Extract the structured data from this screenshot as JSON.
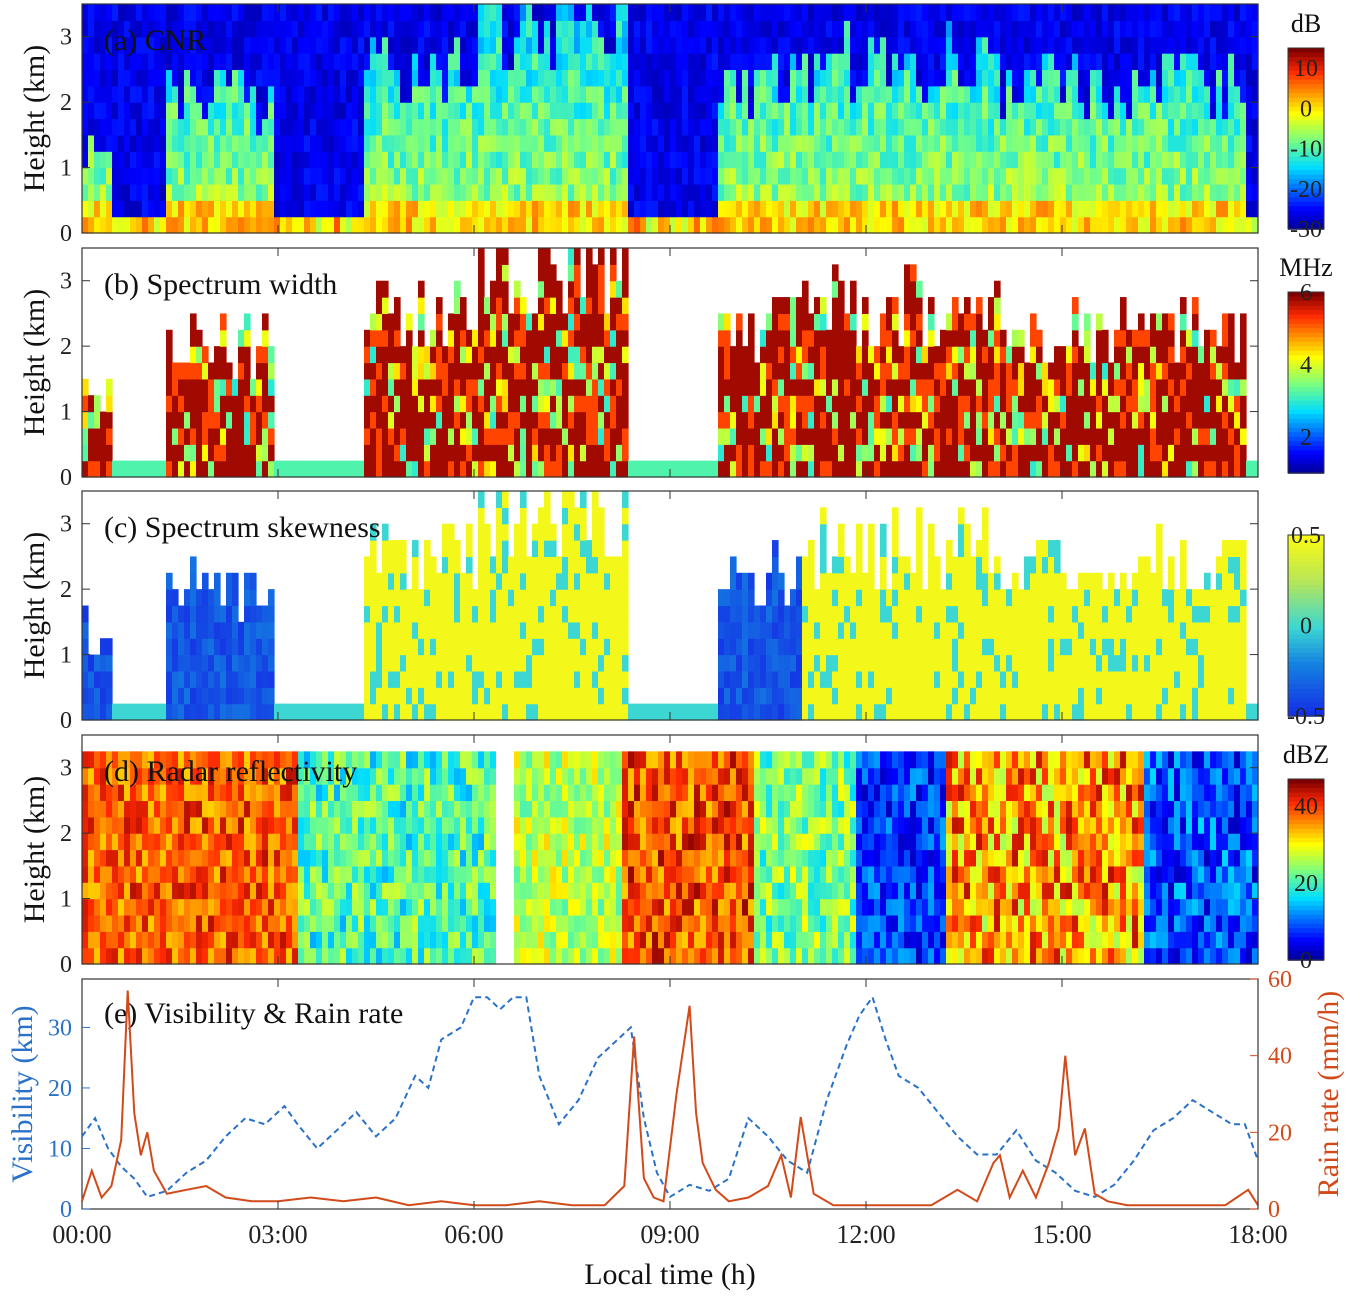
{
  "chart_data": [
    {
      "type": "heatmap",
      "title": "(a) CNR",
      "ylabel": "Height (km)",
      "ylim": [
        0,
        3.5
      ],
      "yticks": [
        "0",
        "1",
        "2",
        "3"
      ],
      "colorbar": {
        "unit": "dB",
        "range": [
          -30,
          15
        ],
        "ticks": [
          "10",
          "0",
          "-10",
          "-20",
          "-30"
        ],
        "colormap": "jet"
      }
    },
    {
      "type": "heatmap",
      "title": "(b) Spectrum width",
      "ylabel": "Height (km)",
      "ylim": [
        0,
        3.5
      ],
      "yticks": [
        "0",
        "1",
        "2",
        "3"
      ],
      "colorbar": {
        "unit": "MHz",
        "range": [
          1,
          6
        ],
        "ticks": [
          "6",
          "4",
          "2"
        ],
        "colormap": "jet"
      }
    },
    {
      "type": "heatmap",
      "title": "(c) Spectrum skewness",
      "ylabel": "Height (km)",
      "ylim": [
        0,
        3.5
      ],
      "yticks": [
        "0",
        "1",
        "2",
        "3"
      ],
      "colorbar": {
        "unit": "",
        "range": [
          -0.5,
          0.5
        ],
        "ticks": [
          "0.5",
          "0",
          "-0.5"
        ],
        "colormap": "parula"
      }
    },
    {
      "type": "heatmap",
      "title": "(d) Radar reflectivity",
      "ylabel": "Height (km)",
      "ylim": [
        0,
        3.5
      ],
      "yticks": [
        "0",
        "1",
        "2",
        "3"
      ],
      "colorbar": {
        "unit": "dBZ",
        "range": [
          0,
          47
        ],
        "ticks": [
          "40",
          "20",
          "0"
        ],
        "colormap": "jet"
      }
    },
    {
      "type": "line",
      "title": "(e) Visibility & Rain rate",
      "xlabel": "Local time (h)",
      "x_ticks": [
        "00:00",
        "03:00",
        "06:00",
        "09:00",
        "12:00",
        "15:00",
        "18:00"
      ],
      "xlim": [
        0,
        18
      ],
      "y_left": {
        "label": "Visibility (km)",
        "ticks": [
          "0",
          "10",
          "20",
          "30"
        ],
        "range": [
          0,
          38
        ],
        "color": "#2a72c8"
      },
      "y_right": {
        "label": "Rain rate (mm/h)",
        "ticks": [
          "0",
          "20",
          "40",
          "60"
        ],
        "range": [
          0,
          60
        ],
        "color": "#d24a1a"
      },
      "series": [
        {
          "name": "Visibility",
          "style": "dashed",
          "x": [
            0,
            0.2,
            0.4,
            0.6,
            0.8,
            1.0,
            1.3,
            1.6,
            1.9,
            2.2,
            2.5,
            2.8,
            3.1,
            3.3,
            3.6,
            3.9,
            4.2,
            4.5,
            4.8,
            5.1,
            5.3,
            5.5,
            5.8,
            6.0,
            6.2,
            6.4,
            6.6,
            6.8,
            7.0,
            7.3,
            7.6,
            7.9,
            8.2,
            8.4,
            8.6,
            8.8,
            9.0,
            9.3,
            9.6,
            9.9,
            10.2,
            10.5,
            10.8,
            11.1,
            11.4,
            11.7,
            11.9,
            12.1,
            12.3,
            12.5,
            12.8,
            13.1,
            13.4,
            13.7,
            14.0,
            14.3,
            14.6,
            14.9,
            15.2,
            15.5,
            15.8,
            16.1,
            16.4,
            16.7,
            17.0,
            17.3,
            17.6,
            17.8,
            18.0
          ],
          "values": [
            12,
            15,
            10,
            7,
            5,
            2,
            3,
            6,
            8,
            12,
            15,
            14,
            17,
            14,
            10,
            13,
            16,
            12,
            15,
            22,
            20,
            28,
            30,
            35,
            35,
            33,
            35,
            35,
            22,
            14,
            18,
            25,
            28,
            30,
            15,
            6,
            2,
            4,
            3,
            5,
            15,
            12,
            8,
            6,
            18,
            27,
            32,
            35,
            28,
            22,
            20,
            16,
            12,
            9,
            9,
            13,
            8,
            6,
            3,
            2,
            4,
            8,
            13,
            15,
            18,
            16,
            14,
            14,
            8
          ]
        },
        {
          "name": "Rain rate",
          "style": "solid",
          "x": [
            0,
            0.15,
            0.3,
            0.45,
            0.6,
            0.7,
            0.8,
            0.9,
            1.0,
            1.1,
            1.3,
            1.6,
            1.9,
            2.2,
            2.6,
            3.0,
            3.5,
            4.0,
            4.5,
            5.0,
            5.5,
            6.0,
            6.5,
            7.0,
            7.5,
            8.0,
            8.3,
            8.45,
            8.6,
            8.75,
            8.9,
            9.1,
            9.3,
            9.4,
            9.5,
            9.7,
            9.9,
            10.2,
            10.5,
            10.7,
            10.85,
            11.0,
            11.2,
            11.5,
            12.0,
            12.5,
            13.0,
            13.4,
            13.7,
            13.95,
            14.05,
            14.2,
            14.4,
            14.6,
            14.8,
            14.95,
            15.05,
            15.2,
            15.35,
            15.5,
            15.7,
            16.0,
            16.5,
            17.0,
            17.5,
            17.85,
            18.0
          ],
          "values": [
            2,
            10,
            3,
            6,
            18,
            57,
            25,
            14,
            20,
            10,
            4,
            5,
            6,
            3,
            2,
            2,
            3,
            2,
            3,
            1,
            2,
            1,
            1,
            2,
            1,
            1,
            6,
            45,
            8,
            3,
            2,
            30,
            53,
            25,
            12,
            5,
            2,
            3,
            6,
            14,
            3,
            24,
            4,
            1,
            1,
            1,
            1,
            5,
            2,
            12,
            14,
            3,
            10,
            3,
            12,
            21,
            40,
            14,
            21,
            4,
            2,
            1,
            1,
            1,
            1,
            5,
            1
          ]
        }
      ]
    }
  ]
}
